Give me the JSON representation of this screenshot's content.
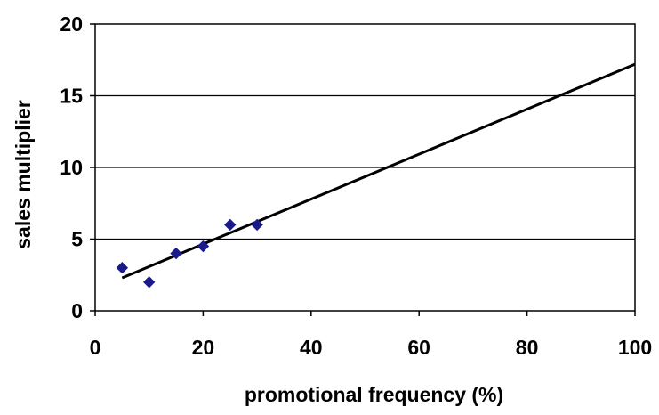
{
  "chart_data": {
    "type": "scatter",
    "title": "",
    "xlabel": "promotional frequency (%)",
    "ylabel": "sales multiplier",
    "xlim": [
      0,
      100
    ],
    "ylim": [
      0,
      20
    ],
    "x_ticks": [
      "0",
      "20",
      "40",
      "60",
      "80",
      "100"
    ],
    "y_ticks": [
      "0",
      "5",
      "10",
      "15",
      "20"
    ],
    "grid": "horizontal",
    "legend": "none",
    "series": [
      {
        "marker": "diamond",
        "color": "#1a1a8c",
        "points": [
          {
            "x": 5,
            "y": 3
          },
          {
            "x": 10,
            "y": 2
          },
          {
            "x": 15,
            "y": 4
          },
          {
            "x": 20,
            "y": 4.5
          },
          {
            "x": 25,
            "y": 6
          },
          {
            "x": 30,
            "y": 6
          }
        ]
      }
    ],
    "trendline": {
      "type": "linear",
      "color": "#000000",
      "x_start": 5,
      "x_end": 100,
      "y_start": 2.3,
      "y_end": 17.2
    }
  }
}
